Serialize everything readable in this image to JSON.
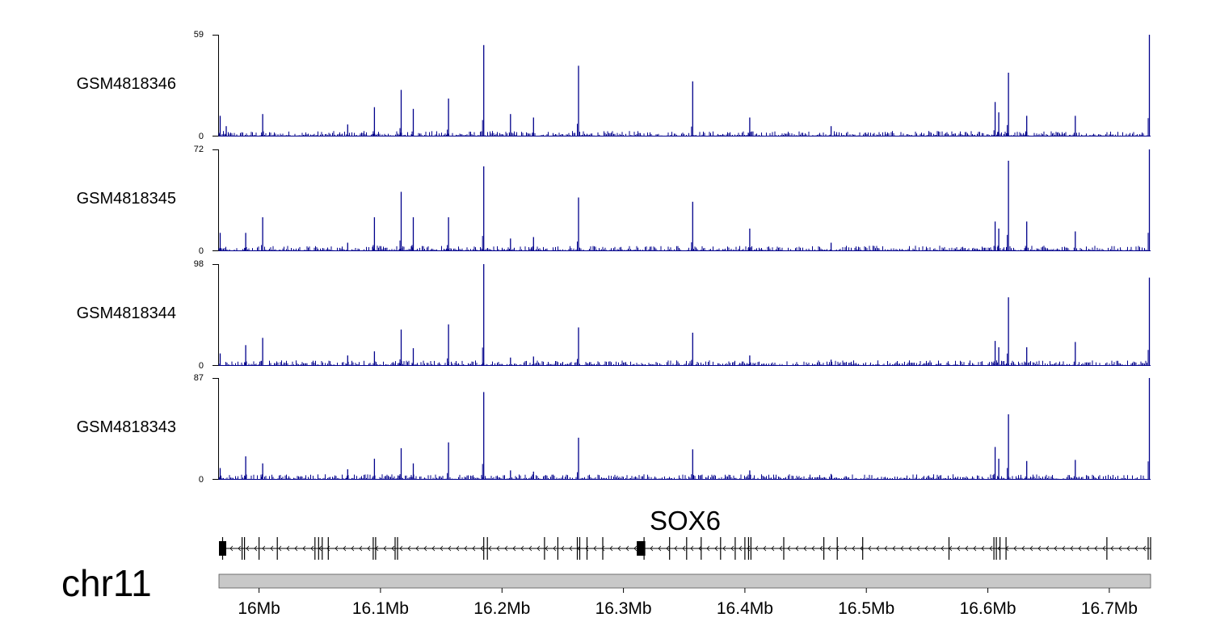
{
  "chart_data": {
    "type": "genome-browser-tracks",
    "chromosome": "chr11",
    "x_range_mb": [
      15.967,
      16.734
    ],
    "x_axis_ticks": [
      "16Mb",
      "16.1Mb",
      "16.2Mb",
      "16.3Mb",
      "16.4Mb",
      "16.5Mb",
      "16.6Mb",
      "16.7Mb"
    ],
    "x_axis_tick_values_mb": [
      16.0,
      16.1,
      16.2,
      16.3,
      16.4,
      16.5,
      16.6,
      16.7
    ],
    "gene": {
      "name": "SOX6",
      "strand": "-",
      "start_mb": 15.967,
      "end_mb": 16.734,
      "exons_mb": [
        15.97,
        15.986,
        15.988,
        16.0,
        16.015,
        16.046,
        16.049,
        16.052,
        16.057,
        16.094,
        16.096,
        16.112,
        16.114,
        16.185,
        16.188,
        16.235,
        16.246,
        16.262,
        16.264,
        16.27,
        16.283,
        16.317,
        16.338,
        16.352,
        16.364,
        16.38,
        16.392,
        16.4,
        16.403,
        16.405,
        16.432,
        16.465,
        16.476,
        16.497,
        16.568,
        16.605,
        16.607,
        16.61,
        16.615,
        16.698,
        16.732,
        16.734
      ],
      "large_exons_mb": [
        [
          15.967,
          15.973
        ],
        [
          16.311,
          16.318
        ]
      ]
    },
    "tracks": [
      {
        "name": "GSM4818346",
        "ymax": 59,
        "ymin": 0,
        "color": "#00008b",
        "peaks": [
          [
            15.968,
            12
          ],
          [
            15.973,
            6
          ],
          [
            16.003,
            13
          ],
          [
            16.073,
            7
          ],
          [
            16.095,
            17
          ],
          [
            16.117,
            27
          ],
          [
            16.127,
            16
          ],
          [
            16.156,
            22
          ],
          [
            16.185,
            53
          ],
          [
            16.207,
            13
          ],
          [
            16.226,
            11
          ],
          [
            16.263,
            41
          ],
          [
            16.357,
            32
          ],
          [
            16.404,
            11
          ],
          [
            16.471,
            6
          ],
          [
            16.606,
            20
          ],
          [
            16.609,
            14
          ],
          [
            16.617,
            37
          ],
          [
            16.632,
            12
          ],
          [
            16.672,
            12
          ],
          [
            16.733,
            59
          ]
        ]
      },
      {
        "name": "GSM4818345",
        "ymax": 72,
        "ymin": 0,
        "color": "#00008b",
        "peaks": [
          [
            15.968,
            13
          ],
          [
            15.989,
            13
          ],
          [
            16.003,
            24
          ],
          [
            16.073,
            6
          ],
          [
            16.095,
            24
          ],
          [
            16.117,
            42
          ],
          [
            16.127,
            24
          ],
          [
            16.156,
            24
          ],
          [
            16.185,
            60
          ],
          [
            16.207,
            9
          ],
          [
            16.226,
            10
          ],
          [
            16.263,
            38
          ],
          [
            16.357,
            35
          ],
          [
            16.404,
            16
          ],
          [
            16.471,
            6
          ],
          [
            16.606,
            21
          ],
          [
            16.609,
            16
          ],
          [
            16.617,
            64
          ],
          [
            16.632,
            21
          ],
          [
            16.672,
            14
          ],
          [
            16.733,
            72
          ]
        ]
      },
      {
        "name": "GSM4818344",
        "ymax": 98,
        "ymin": 0,
        "color": "#00008b",
        "peaks": [
          [
            15.968,
            12
          ],
          [
            15.989,
            20
          ],
          [
            16.003,
            27
          ],
          [
            16.073,
            10
          ],
          [
            16.095,
            14
          ],
          [
            16.117,
            35
          ],
          [
            16.127,
            17
          ],
          [
            16.156,
            40
          ],
          [
            16.185,
            98
          ],
          [
            16.207,
            8
          ],
          [
            16.226,
            9
          ],
          [
            16.263,
            37
          ],
          [
            16.357,
            32
          ],
          [
            16.404,
            10
          ],
          [
            16.471,
            6
          ],
          [
            16.606,
            24
          ],
          [
            16.609,
            18
          ],
          [
            16.617,
            66
          ],
          [
            16.632,
            18
          ],
          [
            16.672,
            23
          ],
          [
            16.733,
            85
          ]
        ]
      },
      {
        "name": "GSM4818343",
        "ymax": 87,
        "ymin": 0,
        "color": "#00008b",
        "peaks": [
          [
            15.968,
            10
          ],
          [
            15.989,
            20
          ],
          [
            16.003,
            14
          ],
          [
            16.073,
            9
          ],
          [
            16.095,
            18
          ],
          [
            16.117,
            27
          ],
          [
            16.127,
            14
          ],
          [
            16.156,
            32
          ],
          [
            16.185,
            75
          ],
          [
            16.207,
            8
          ],
          [
            16.226,
            7
          ],
          [
            16.263,
            36
          ],
          [
            16.357,
            26
          ],
          [
            16.404,
            8
          ],
          [
            16.471,
            5
          ],
          [
            16.606,
            28
          ],
          [
            16.609,
            18
          ],
          [
            16.617,
            56
          ],
          [
            16.632,
            16
          ],
          [
            16.672,
            17
          ],
          [
            16.733,
            87
          ]
        ]
      }
    ]
  }
}
